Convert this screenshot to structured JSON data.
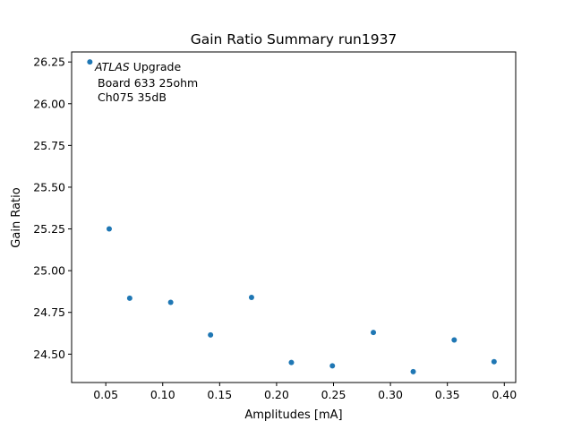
{
  "chart_data": {
    "type": "scatter",
    "title": "Gain Ratio Summary run1937",
    "xlabel": "Amplitudes [mA]",
    "ylabel": "Gain Ratio",
    "xlim": [
      0.02,
      0.41
    ],
    "ylim": [
      24.33,
      26.31
    ],
    "xticks": [
      0.05,
      0.1,
      0.15,
      0.2,
      0.25,
      0.3,
      0.35,
      0.4
    ],
    "xtick_labels": [
      "0.05",
      "0.10",
      "0.15",
      "0.20",
      "0.25",
      "0.30",
      "0.35",
      "0.40"
    ],
    "yticks": [
      24.5,
      24.75,
      25.0,
      25.25,
      25.5,
      25.75,
      26.0,
      26.25
    ],
    "ytick_labels": [
      "24.50",
      "24.75",
      "25.00",
      "25.25",
      "25.50",
      "25.75",
      "26.00",
      "26.25"
    ],
    "grid": false,
    "marker_color": "#1f77b4",
    "points": [
      {
        "x": 0.036,
        "y": 26.25
      },
      {
        "x": 0.053,
        "y": 25.25
      },
      {
        "x": 0.071,
        "y": 24.835
      },
      {
        "x": 0.107,
        "y": 24.81
      },
      {
        "x": 0.142,
        "y": 24.615
      },
      {
        "x": 0.178,
        "y": 24.84
      },
      {
        "x": 0.213,
        "y": 24.45
      },
      {
        "x": 0.249,
        "y": 24.43
      },
      {
        "x": 0.285,
        "y": 24.63
      },
      {
        "x": 0.32,
        "y": 24.395
      },
      {
        "x": 0.356,
        "y": 24.585
      },
      {
        "x": 0.391,
        "y": 24.455
      }
    ],
    "annotation": {
      "italic_prefix": "ATLAS",
      "line1_rest": " Upgrade",
      "line2": "Board 633 25ohm",
      "line3": "Ch075 35dB"
    }
  }
}
